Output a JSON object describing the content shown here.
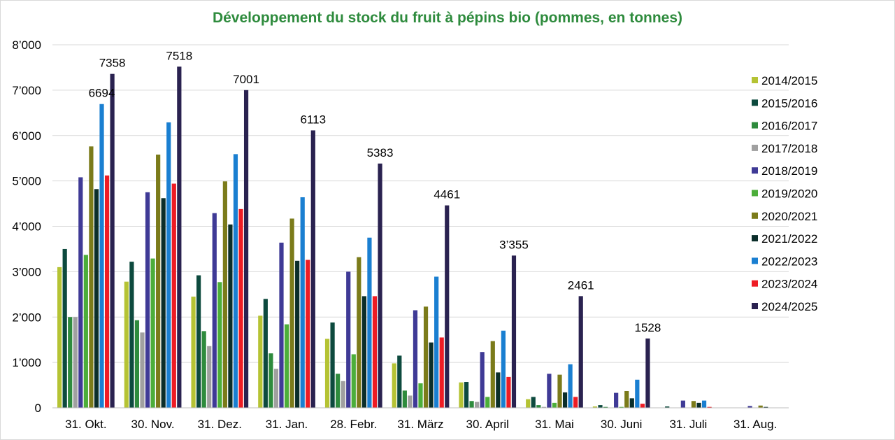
{
  "chart_data": {
    "type": "bar",
    "title": "Développement du stock du fruit à pépins bio (pommes, en tonnes)",
    "title_color": "#2e8b3d",
    "categories": [
      "31. Okt.",
      "30. Nov.",
      "31. Dez.",
      "31. Jan.",
      "28. Febr.",
      "31. März",
      "30. April",
      "31. Mai",
      "30. Juni",
      "31. Juli",
      "31. Aug."
    ],
    "ylim": [
      0,
      8000
    ],
    "yticks": [
      0,
      1000,
      2000,
      3000,
      4000,
      5000,
      6000,
      7000,
      8000
    ],
    "ytick_labels": [
      "0",
      "1’000",
      "2’000",
      "3’000",
      "4’000",
      "5’000",
      "6’000",
      "7’000",
      "8’000"
    ],
    "grid": true,
    "legend_position": "right",
    "series": [
      {
        "name": "2014/2015",
        "color": "#b5c334",
        "values": [
          3100,
          2780,
          2450,
          2030,
          1520,
          980,
          560,
          190,
          30,
          0,
          0
        ]
      },
      {
        "name": "2015/2016",
        "color": "#0d4a3e",
        "values": [
          3500,
          3220,
          2920,
          2400,
          1880,
          1150,
          570,
          240,
          60,
          30,
          0
        ]
      },
      {
        "name": "2016/2017",
        "color": "#2e8b3d",
        "values": [
          2000,
          1930,
          1690,
          1200,
          750,
          380,
          150,
          60,
          20,
          0,
          0
        ]
      },
      {
        "name": "2017/2018",
        "color": "#a0a0a0",
        "values": [
          2000,
          1660,
          1360,
          860,
          590,
          270,
          130,
          20,
          0,
          0,
          0
        ]
      },
      {
        "name": "2018/2019",
        "color": "#3f3a96",
        "values": [
          5080,
          4750,
          4290,
          3640,
          3000,
          2150,
          1230,
          750,
          330,
          160,
          40
        ]
      },
      {
        "name": "2019/2020",
        "color": "#4cae3a",
        "values": [
          3370,
          3290,
          2770,
          1840,
          1180,
          540,
          240,
          110,
          20,
          0,
          0
        ]
      },
      {
        "name": "2020/2021",
        "color": "#7b7b1a",
        "values": [
          5760,
          5580,
          4990,
          4170,
          3320,
          2230,
          1470,
          730,
          370,
          150,
          50
        ]
      },
      {
        "name": "2021/2022",
        "color": "#0b2e2a",
        "values": [
          4820,
          4620,
          4040,
          3240,
          2460,
          1440,
          780,
          340,
          210,
          110,
          20
        ]
      },
      {
        "name": "2022/2023",
        "color": "#1a7fd1",
        "values": [
          6694,
          6290,
          5590,
          4640,
          3750,
          2890,
          1700,
          960,
          620,
          160,
          0
        ]
      },
      {
        "name": "2023/2024",
        "color": "#ee1c24",
        "values": [
          5120,
          4940,
          4380,
          3260,
          2460,
          1550,
          680,
          240,
          90,
          20,
          0
        ]
      },
      {
        "name": "2024/2025",
        "color": "#2a2250",
        "values": [
          7358,
          7518,
          7001,
          6113,
          5383,
          4461,
          3355,
          2461,
          1528,
          0,
          0
        ]
      }
    ],
    "annotations": [
      {
        "category_index": 0,
        "series": "2022/2023",
        "value": 6694,
        "text": "6694"
      },
      {
        "category_index": 0,
        "series": "2024/2025",
        "value": 7358,
        "text": "7358"
      },
      {
        "category_index": 1,
        "series": "2024/2025",
        "value": 7518,
        "text": "7518"
      },
      {
        "category_index": 2,
        "series": "2024/2025",
        "value": 7001,
        "text": "7001"
      },
      {
        "category_index": 3,
        "series": "2024/2025",
        "value": 6113,
        "text": "6113"
      },
      {
        "category_index": 4,
        "series": "2024/2025",
        "value": 5383,
        "text": "5383"
      },
      {
        "category_index": 5,
        "series": "2024/2025",
        "value": 4461,
        "text": "4461"
      },
      {
        "category_index": 6,
        "series": "2024/2025",
        "value": 3355,
        "text": "3’355"
      },
      {
        "category_index": 7,
        "series": "2024/2025",
        "value": 2461,
        "text": "2461"
      },
      {
        "category_index": 8,
        "series": "2024/2025",
        "value": 1528,
        "text": "1528"
      }
    ]
  }
}
